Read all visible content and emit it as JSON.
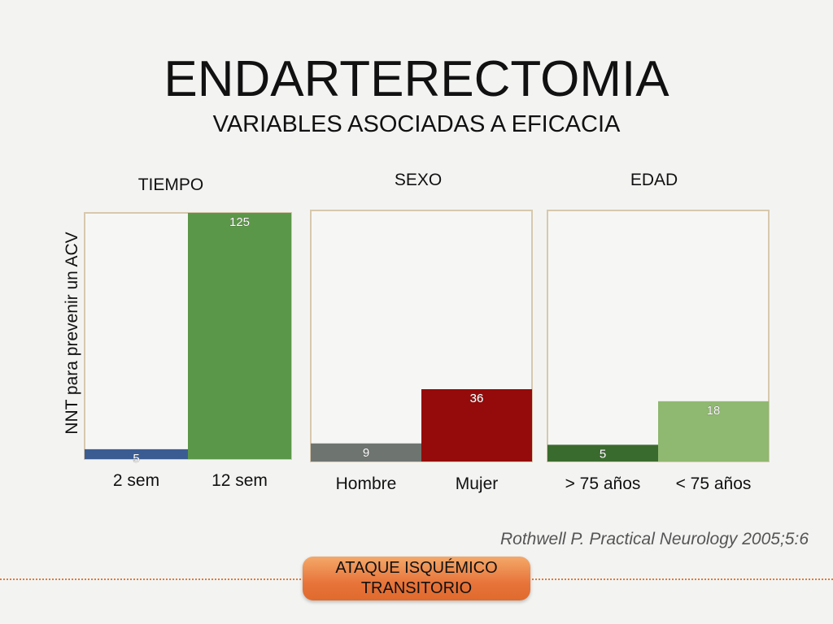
{
  "slide": {
    "title": "ENDARTERECTOMIA",
    "subtitle": "VARIABLES ASOCIADAS A EFICACIA",
    "ylabel": "NNT para prevenir un ACV",
    "source": "Rothwell P. Practical Neurology 2005;5:6",
    "button_line1": "ATAQUE ISQUÉMICO",
    "button_line2": "TRANSITORIO"
  },
  "colors": {
    "background": "#f3f4f2",
    "frame": "#d8c8ad",
    "blue": "#3b5c93",
    "green": "#5b9748",
    "gray": "#6e7470",
    "darkred": "#950a0a",
    "darkgreen": "#3a6b2e",
    "lightgreen": "#8fb870",
    "accent": "#e8743a"
  },
  "chart_data": [
    {
      "type": "bar",
      "title": "TIEMPO",
      "ylabel": "NNT para prevenir un ACV",
      "categories": [
        "2 sem",
        "12 sem"
      ],
      "values": [
        5,
        125
      ],
      "colors": [
        "#3b5c93",
        "#5b9748"
      ],
      "ylim": [
        0,
        125
      ]
    },
    {
      "type": "bar",
      "title": "SEXO",
      "categories": [
        "Hombre",
        "Mujer"
      ],
      "values": [
        9,
        36
      ],
      "colors": [
        "#6e7470",
        "#950a0a"
      ],
      "ylim": [
        0,
        125
      ]
    },
    {
      "type": "bar",
      "title": "EDAD",
      "categories": [
        "> 75 años",
        "< 75 años"
      ],
      "values": [
        5,
        18
      ],
      "colors": [
        "#3a6b2e",
        "#8fb870"
      ],
      "ylim": [
        0,
        75
      ]
    }
  ]
}
